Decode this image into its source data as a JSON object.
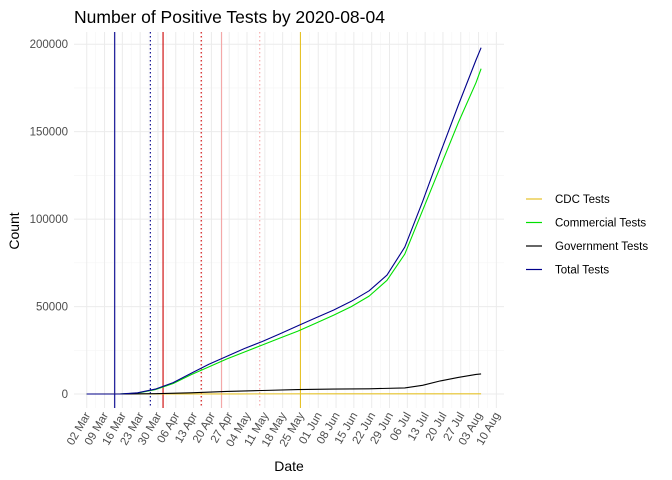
{
  "chart_data": {
    "type": "line",
    "title": "Number of Positive Tests by  2020-08-04",
    "xlabel": "Date",
    "ylabel": "Count",
    "xlim": [
      "2020-02-26",
      "2020-08-13"
    ],
    "ylim": [
      -8000,
      207000
    ],
    "x_ticks": [
      "2020-03-02",
      "2020-03-09",
      "2020-03-16",
      "2020-03-23",
      "2020-03-30",
      "2020-04-06",
      "2020-04-13",
      "2020-04-20",
      "2020-04-27",
      "2020-05-04",
      "2020-05-11",
      "2020-05-18",
      "2020-05-25",
      "2020-06-01",
      "2020-06-08",
      "2020-06-15",
      "2020-06-22",
      "2020-06-29",
      "2020-07-06",
      "2020-07-13",
      "2020-07-20",
      "2020-07-27",
      "2020-08-03",
      "2020-08-10"
    ],
    "x_tick_labels": [
      "02 Mar",
      "09 Mar",
      "16 Mar",
      "23 Mar",
      "30 Mar",
      "06 Apr",
      "13 Apr",
      "20 Apr",
      "27 Apr",
      "04 May",
      "11 May",
      "18 May",
      "25 May",
      "01 Jun",
      "08 Jun",
      "15 Jun",
      "22 Jun",
      "29 Jun",
      "06 Jul",
      "13 Jul",
      "20 Jul",
      "27 Jul",
      "03 Aug",
      "10 Aug"
    ],
    "y_ticks": [
      0,
      50000,
      100000,
      150000,
      200000
    ],
    "y_tick_labels": [
      "0",
      "50000",
      "100000",
      "150000",
      "200000"
    ],
    "grid": true,
    "legend_position": "right",
    "series": [
      {
        "name": "CDC Tests",
        "color": "#e6c229",
        "points": [
          [
            "2020-03-02",
            0
          ],
          [
            "2020-04-01",
            50
          ],
          [
            "2020-05-01",
            80
          ],
          [
            "2020-06-01",
            100
          ],
          [
            "2020-07-01",
            110
          ],
          [
            "2020-08-04",
            120
          ]
        ]
      },
      {
        "name": "Commercial Tests",
        "color": "#00e000",
        "points": [
          [
            "2020-03-02",
            0
          ],
          [
            "2020-03-15",
            0
          ],
          [
            "2020-03-22",
            500
          ],
          [
            "2020-03-29",
            2500
          ],
          [
            "2020-04-05",
            6000
          ],
          [
            "2020-04-12",
            11000
          ],
          [
            "2020-04-19",
            15500
          ],
          [
            "2020-04-26",
            20000
          ],
          [
            "2020-05-03",
            24000
          ],
          [
            "2020-05-10",
            28000
          ],
          [
            "2020-05-17",
            32000
          ],
          [
            "2020-05-24",
            36000
          ],
          [
            "2020-05-31",
            40500
          ],
          [
            "2020-06-07",
            45000
          ],
          [
            "2020-06-14",
            50000
          ],
          [
            "2020-06-21",
            56000
          ],
          [
            "2020-06-28",
            65000
          ],
          [
            "2020-07-05",
            80000
          ],
          [
            "2020-07-12",
            105000
          ],
          [
            "2020-07-19",
            130000
          ],
          [
            "2020-07-26",
            155000
          ],
          [
            "2020-08-02",
            178000
          ],
          [
            "2020-08-04",
            186000
          ]
        ]
      },
      {
        "name": "Government Tests",
        "color": "#000000",
        "points": [
          [
            "2020-03-02",
            0
          ],
          [
            "2020-03-15",
            0
          ],
          [
            "2020-03-29",
            200
          ],
          [
            "2020-04-12",
            700
          ],
          [
            "2020-04-26",
            1500
          ],
          [
            "2020-05-10",
            2000
          ],
          [
            "2020-05-24",
            2500
          ],
          [
            "2020-06-07",
            2800
          ],
          [
            "2020-06-21",
            3000
          ],
          [
            "2020-07-05",
            3500
          ],
          [
            "2020-07-12",
            5000
          ],
          [
            "2020-07-19",
            7500
          ],
          [
            "2020-07-26",
            9500
          ],
          [
            "2020-08-02",
            11200
          ],
          [
            "2020-08-04",
            11500
          ]
        ]
      },
      {
        "name": "Total Tests",
        "color": "#00008b",
        "points": [
          [
            "2020-03-02",
            0
          ],
          [
            "2020-03-15",
            0
          ],
          [
            "2020-03-22",
            700
          ],
          [
            "2020-03-29",
            2800
          ],
          [
            "2020-04-05",
            6500
          ],
          [
            "2020-04-12",
            11800
          ],
          [
            "2020-04-19",
            17000
          ],
          [
            "2020-04-26",
            21500
          ],
          [
            "2020-05-03",
            26000
          ],
          [
            "2020-05-10",
            30000
          ],
          [
            "2020-05-17",
            34500
          ],
          [
            "2020-05-24",
            39000
          ],
          [
            "2020-05-31",
            43500
          ],
          [
            "2020-06-07",
            48000
          ],
          [
            "2020-06-14",
            53000
          ],
          [
            "2020-06-21",
            59000
          ],
          [
            "2020-06-28",
            68000
          ],
          [
            "2020-07-05",
            84000
          ],
          [
            "2020-07-12",
            110000
          ],
          [
            "2020-07-19",
            138000
          ],
          [
            "2020-07-26",
            165000
          ],
          [
            "2020-08-02",
            191000
          ],
          [
            "2020-08-04",
            198000
          ]
        ]
      }
    ],
    "reference_lines": [
      {
        "date": "2020-03-13",
        "color": "#00008b",
        "style": "solid"
      },
      {
        "date": "2020-03-27",
        "color": "#00008b",
        "style": "dotted"
      },
      {
        "date": "2020-04-01",
        "color": "#cc0000",
        "style": "solid"
      },
      {
        "date": "2020-04-16",
        "color": "#cc0000",
        "style": "dotted"
      },
      {
        "date": "2020-04-24",
        "color": "#f4a6a6",
        "style": "solid"
      },
      {
        "date": "2020-05-09",
        "color": "#f4a6a6",
        "style": "dotted"
      },
      {
        "date": "2020-05-25",
        "color": "#e6c229",
        "style": "solid"
      }
    ]
  }
}
